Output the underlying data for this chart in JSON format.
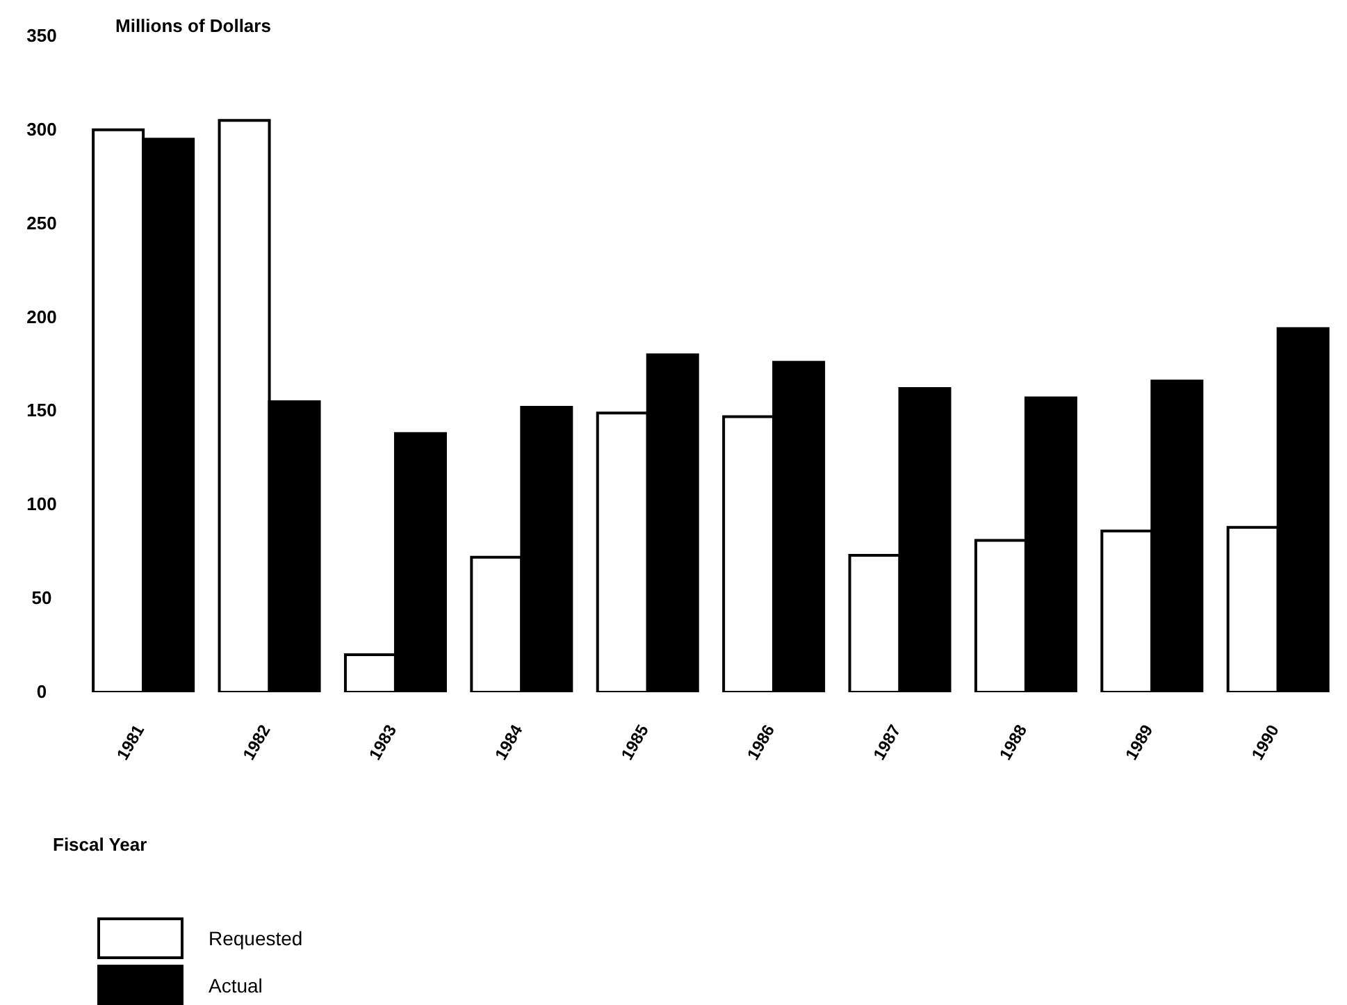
{
  "chart_data": {
    "type": "bar",
    "ylabel": "Millions of Dollars",
    "xlabel": "Fiscal Year",
    "categories": [
      "1981",
      "1982",
      "1983",
      "1984",
      "1985",
      "1986",
      "1987",
      "1988",
      "1989",
      "1990"
    ],
    "series": [
      {
        "name": "Requested",
        "color": "#ffffff",
        "values": [
          300,
          305,
          20,
          72,
          149,
          147,
          73,
          81,
          86,
          88
        ]
      },
      {
        "name": "Actual",
        "color": "#000000",
        "values": [
          295,
          155,
          138,
          152,
          180,
          176,
          162,
          157,
          166,
          194
        ]
      }
    ],
    "ylim": [
      0,
      350
    ],
    "yticks": [
      0,
      50,
      100,
      150,
      200,
      250,
      300,
      350
    ],
    "grid": false,
    "legend": "bottom left"
  }
}
